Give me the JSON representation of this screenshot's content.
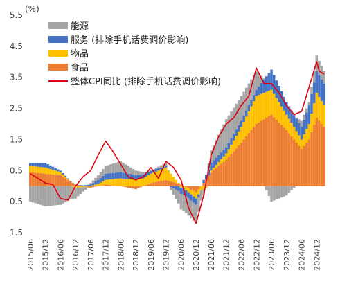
{
  "chart_data": {
    "type": "bar",
    "stacked": true,
    "unit": "(%)",
    "ylim": [
      -1.5,
      5.5
    ],
    "yticks": [
      "5.5",
      "4.5",
      "3.5",
      "2.5",
      "1.5",
      "0.5",
      "-0.5",
      "-1.5"
    ],
    "ytick_values": [
      5.5,
      4.5,
      3.5,
      2.5,
      1.5,
      0.5,
      -0.5,
      -1.5
    ],
    "grid": false,
    "legend_position": "top-left",
    "x_start": "2015-06",
    "x_end": "2025-03",
    "xticks": [
      "2015/06",
      "2015/12",
      "2016/06",
      "2016/12",
      "2017/06",
      "2017/12",
      "2018/06",
      "2018/12",
      "2019/06",
      "2019/12",
      "2020/06",
      "2020/12",
      "2021/06",
      "2021/12",
      "2022/06",
      "2022/12",
      "2023/06",
      "2023/12",
      "2024/06",
      "2024/12"
    ],
    "series": [
      {
        "name": "能源",
        "color": "#a5a5a5"
      },
      {
        "name": "服务 (排除手机话费调价影响)",
        "color": "#4472c4"
      },
      {
        "name": "物品",
        "color": "#ffc000"
      },
      {
        "name": "食品",
        "color": "#ed7d31"
      }
    ],
    "line_series": {
      "name": "整体CPI同比 (排除手机话费调价影响)",
      "color": "#e0000b"
    },
    "food_anchors": [
      [
        "2015-06",
        0.45
      ],
      [
        "2015-12",
        0.4
      ],
      [
        "2016-06",
        0.35
      ],
      [
        "2016-12",
        0.05
      ],
      [
        "2017-06",
        -0.05
      ],
      [
        "2017-12",
        0.05
      ],
      [
        "2018-06",
        0.0
      ],
      [
        "2018-12",
        -0.1
      ],
      [
        "2019-06",
        0.1
      ],
      [
        "2019-12",
        0.2
      ],
      [
        "2020-06",
        0.05
      ],
      [
        "2020-12",
        -0.2
      ],
      [
        "2021-03",
        0.1
      ],
      [
        "2021-06",
        0.45
      ],
      [
        "2021-12",
        0.85
      ],
      [
        "2022-06",
        1.4
      ],
      [
        "2022-12",
        2.0
      ],
      [
        "2023-06",
        2.3
      ],
      [
        "2023-12",
        1.8
      ],
      [
        "2024-06",
        1.2
      ],
      [
        "2024-09",
        1.5
      ],
      [
        "2024-12",
        2.2
      ],
      [
        "2025-03",
        1.9
      ]
    ],
    "goods_anchors": [
      [
        "2015-06",
        0.2
      ],
      [
        "2015-12",
        0.2
      ],
      [
        "2016-06",
        0.1
      ],
      [
        "2016-12",
        -0.05
      ],
      [
        "2017-06",
        0.0
      ],
      [
        "2017-12",
        0.15
      ],
      [
        "2018-06",
        0.25
      ],
      [
        "2018-12",
        0.2
      ],
      [
        "2019-06",
        0.3
      ],
      [
        "2019-12",
        0.4
      ],
      [
        "2020-06",
        -0.05
      ],
      [
        "2020-12",
        -0.2
      ],
      [
        "2021-03",
        -0.1
      ],
      [
        "2021-06",
        0.05
      ],
      [
        "2021-12",
        0.2
      ],
      [
        "2022-06",
        0.5
      ],
      [
        "2022-12",
        0.9
      ],
      [
        "2023-06",
        0.8
      ],
      [
        "2023-12",
        0.5
      ],
      [
        "2024-06",
        0.3
      ],
      [
        "2024-09",
        0.5
      ],
      [
        "2024-12",
        0.8
      ],
      [
        "2025-03",
        0.7
      ]
    ],
    "services_anchors": [
      [
        "2015-06",
        0.1
      ],
      [
        "2015-12",
        0.15
      ],
      [
        "2016-06",
        0.05
      ],
      [
        "2016-12",
        0.0
      ],
      [
        "2017-06",
        0.05
      ],
      [
        "2017-12",
        0.2
      ],
      [
        "2018-06",
        0.2
      ],
      [
        "2018-12",
        0.15
      ],
      [
        "2019-06",
        0.1
      ],
      [
        "2019-12",
        0.05
      ],
      [
        "2020-06",
        -0.2
      ],
      [
        "2020-12",
        -0.2
      ],
      [
        "2021-03",
        0.1
      ],
      [
        "2021-06",
        0.25
      ],
      [
        "2021-12",
        0.2
      ],
      [
        "2022-06",
        0.2
      ],
      [
        "2022-12",
        0.2
      ],
      [
        "2023-06",
        0.65
      ],
      [
        "2023-12",
        0.4
      ],
      [
        "2024-06",
        0.4
      ],
      [
        "2024-09",
        0.6
      ],
      [
        "2024-12",
        0.7
      ],
      [
        "2025-03",
        0.7
      ]
    ],
    "energy_anchors": [
      [
        "2015-06",
        -0.5
      ],
      [
        "2015-12",
        -0.65
      ],
      [
        "2016-06",
        -0.6
      ],
      [
        "2016-12",
        -0.35
      ],
      [
        "2017-06",
        0.05
      ],
      [
        "2017-12",
        0.25
      ],
      [
        "2018-06",
        0.35
      ],
      [
        "2018-12",
        0.15
      ],
      [
        "2019-06",
        0.0
      ],
      [
        "2019-12",
        0.1
      ],
      [
        "2020-06",
        -0.5
      ],
      [
        "2020-12",
        -0.6
      ],
      [
        "2021-03",
        -0.2
      ],
      [
        "2021-06",
        0.4
      ],
      [
        "2021-12",
        0.9
      ],
      [
        "2022-06",
        0.8
      ],
      [
        "2022-12",
        0.6
      ],
      [
        "2023-06",
        -0.5
      ],
      [
        "2023-12",
        -0.3
      ],
      [
        "2024-06",
        0.2
      ],
      [
        "2024-09",
        0.1
      ],
      [
        "2024-12",
        0.5
      ],
      [
        "2025-03",
        0.4
      ]
    ],
    "cpi_anchors": [
      [
        "2015-06",
        0.4
      ],
      [
        "2015-09",
        0.25
      ],
      [
        "2015-12",
        0.1
      ],
      [
        "2016-03",
        0.05
      ],
      [
        "2016-06",
        -0.4
      ],
      [
        "2016-09",
        -0.45
      ],
      [
        "2016-12",
        0.0
      ],
      [
        "2017-03",
        0.3
      ],
      [
        "2017-06",
        0.5
      ],
      [
        "2017-09",
        1.0
      ],
      [
        "2017-12",
        1.45
      ],
      [
        "2018-03",
        1.1
      ],
      [
        "2018-06",
        0.7
      ],
      [
        "2018-09",
        0.3
      ],
      [
        "2018-12",
        0.2
      ],
      [
        "2019-03",
        0.3
      ],
      [
        "2019-06",
        0.6
      ],
      [
        "2019-09",
        0.25
      ],
      [
        "2019-12",
        0.8
      ],
      [
        "2020-03",
        0.6
      ],
      [
        "2020-06",
        0.2
      ],
      [
        "2020-09",
        -0.7
      ],
      [
        "2020-12",
        -1.2
      ],
      [
        "2021-03",
        -0.3
      ],
      [
        "2021-06",
        1.0
      ],
      [
        "2021-09",
        1.6
      ],
      [
        "2021-12",
        2.0
      ],
      [
        "2022-03",
        2.2
      ],
      [
        "2022-06",
        2.6
      ],
      [
        "2022-09",
        2.9
      ],
      [
        "2022-12",
        3.8
      ],
      [
        "2023-03",
        3.3
      ],
      [
        "2023-06",
        3.3
      ],
      [
        "2023-09",
        3.0
      ],
      [
        "2023-12",
        2.6
      ],
      [
        "2024-03",
        2.3
      ],
      [
        "2024-06",
        2.4
      ],
      [
        "2024-09",
        3.2
      ],
      [
        "2024-12",
        4.0
      ],
      [
        "2025-01",
        3.7
      ],
      [
        "2025-03",
        3.6
      ]
    ]
  }
}
